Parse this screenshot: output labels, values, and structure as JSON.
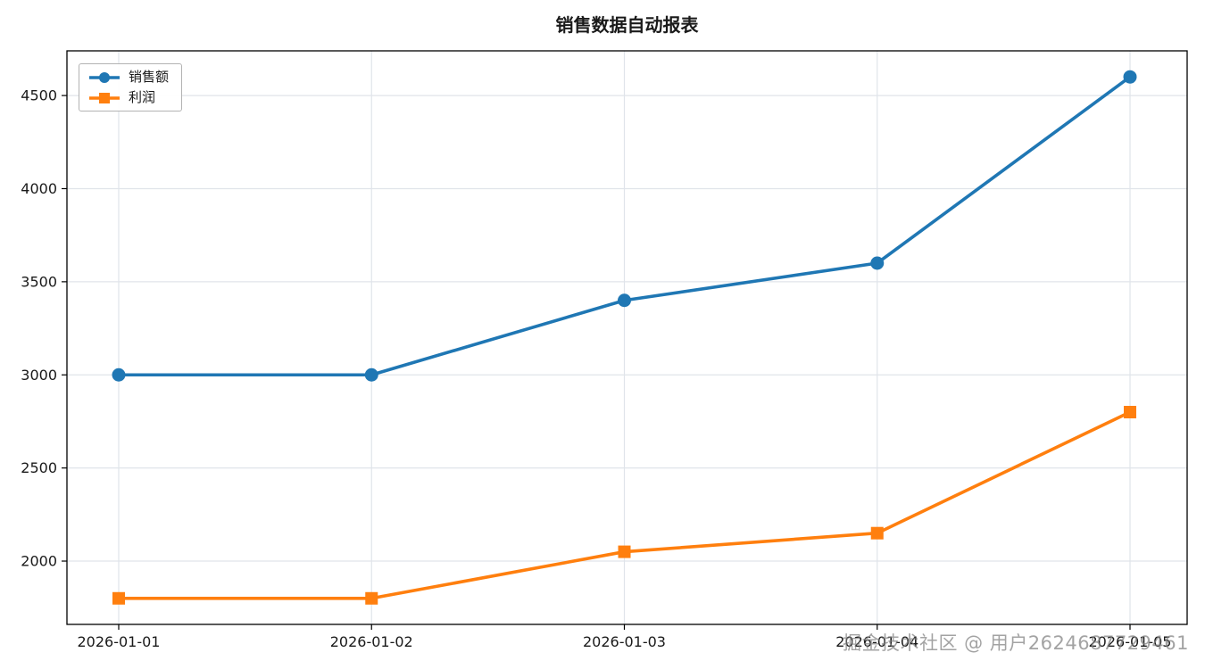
{
  "watermark": {
    "text": "掘金技术社区 @ 用户2624687729461"
  },
  "chart_data": {
    "type": "line",
    "title": "销售数据自动报表",
    "categories": [
      "2026-01-01",
      "2026-01-02",
      "2026-01-03",
      "2026-01-04",
      "2026-01-05"
    ],
    "series": [
      {
        "name": "销售额",
        "values": [
          3000,
          3000,
          3400,
          3600,
          4600
        ],
        "color": "#1f77b4",
        "marker": "circle"
      },
      {
        "name": "利润",
        "values": [
          1800,
          1800,
          2050,
          2150,
          2800
        ],
        "color": "#ff7f0e",
        "marker": "square"
      }
    ],
    "xlabel": "",
    "ylabel": "",
    "yticks": [
      2000,
      2500,
      3000,
      3500,
      4000,
      4500
    ],
    "ylim": [
      1660,
      4740
    ],
    "grid": "on",
    "grid_color": "#e0e4ea",
    "axis_color": "#000000",
    "tick_label_color": "#1a1a1a",
    "legend_position": "upper-left"
  }
}
